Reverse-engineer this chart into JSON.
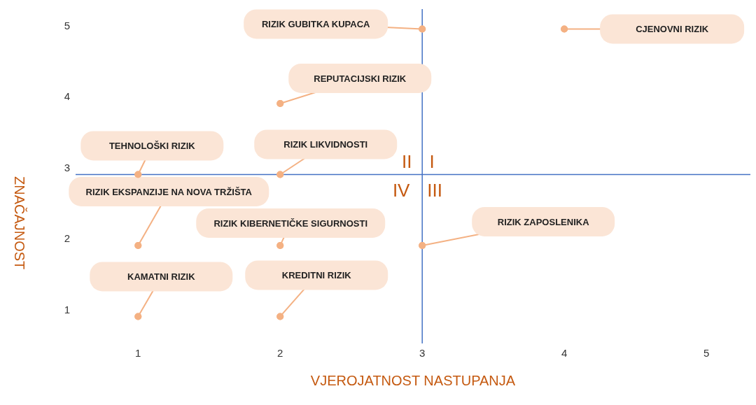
{
  "chart_data": {
    "type": "scatter",
    "xlabel": "VJEROJATNOST NASTUPANJA",
    "ylabel": "ZNAČAJNOST",
    "x": [
      3,
      4,
      2,
      1,
      2,
      1,
      2,
      3,
      1,
      2
    ],
    "values": [
      4.95,
      4.95,
      3.9,
      2.9,
      2.9,
      1.9,
      1.9,
      1.9,
      0.9,
      0.9
    ],
    "color": "#f4b183",
    "marker": "circle",
    "xlim": [
      0.56,
      5.31
    ],
    "xticks": [
      1,
      2,
      3,
      4,
      5
    ],
    "ylim": [
      0.52,
      5.23
    ],
    "yticks": [
      1,
      2,
      3,
      4,
      5
    ],
    "grid": false,
    "ref_lines": [
      {
        "axis": "x",
        "value": 3,
        "color": "#4472c4"
      },
      {
        "axis": "y",
        "value": 2.9,
        "color": "#4472c4"
      }
    ],
    "annotations": [
      {
        "text": "RIZIK GUBITKA KUPACA",
        "x": 3,
        "y": 4.95
      },
      {
        "text": "CJENOVNI RIZIK",
        "x": 4,
        "y": 4.95
      },
      {
        "text": "REPUTACIJSKI RIZIK",
        "x": 2,
        "y": 3.9
      },
      {
        "text": "TEHNOLOŠKI RIZIK",
        "x": 1,
        "y": 2.9
      },
      {
        "text": "RIZIK LIKVIDNOSTI",
        "x": 2,
        "y": 2.9
      },
      {
        "text": "RIZIK EKSPANZIJE NA NOVA TRŽIŠTA",
        "x": 1,
        "y": 1.9
      },
      {
        "text": "RIZIK KIBERNETIČKE SIGURNOSTI",
        "x": 2,
        "y": 1.9
      },
      {
        "text": "RIZIK ZAPOSLENIKA",
        "x": 3,
        "y": 1.9
      },
      {
        "text": "KAMATNI RIZIK",
        "x": 1,
        "y": 0.9
      },
      {
        "text": "KREDITNI RIZIK",
        "x": 2,
        "y": 0.9
      },
      "II",
      "I",
      "IV",
      "III"
    ]
  }
}
